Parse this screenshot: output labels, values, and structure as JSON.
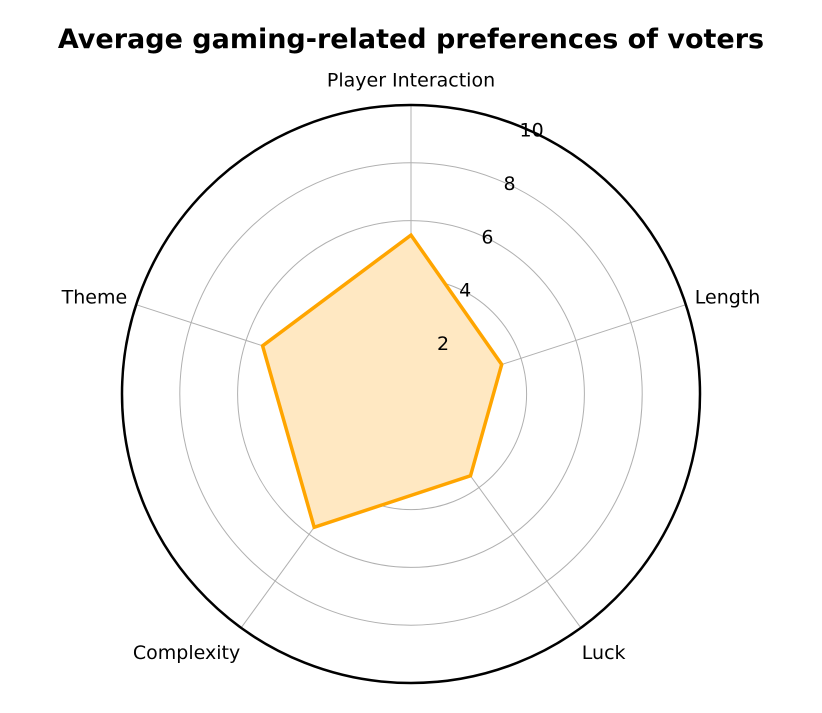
{
  "chart_data": {
    "type": "radar",
    "title": "Average gaming-related preferences of voters",
    "categories": [
      "Player Interaction",
      "Length",
      "Luck",
      "Complexity",
      "Theme"
    ],
    "values": [
      5.5,
      3.3,
      3.5,
      5.7,
      5.4
    ],
    "rlim": [
      0,
      10
    ],
    "rticks": [
      2,
      4,
      6,
      8,
      10
    ],
    "grid": true,
    "colors": {
      "line": "#FFA500",
      "fill": "#FFE8C2",
      "grid": "#b0b0b0",
      "frame": "#000000"
    }
  }
}
